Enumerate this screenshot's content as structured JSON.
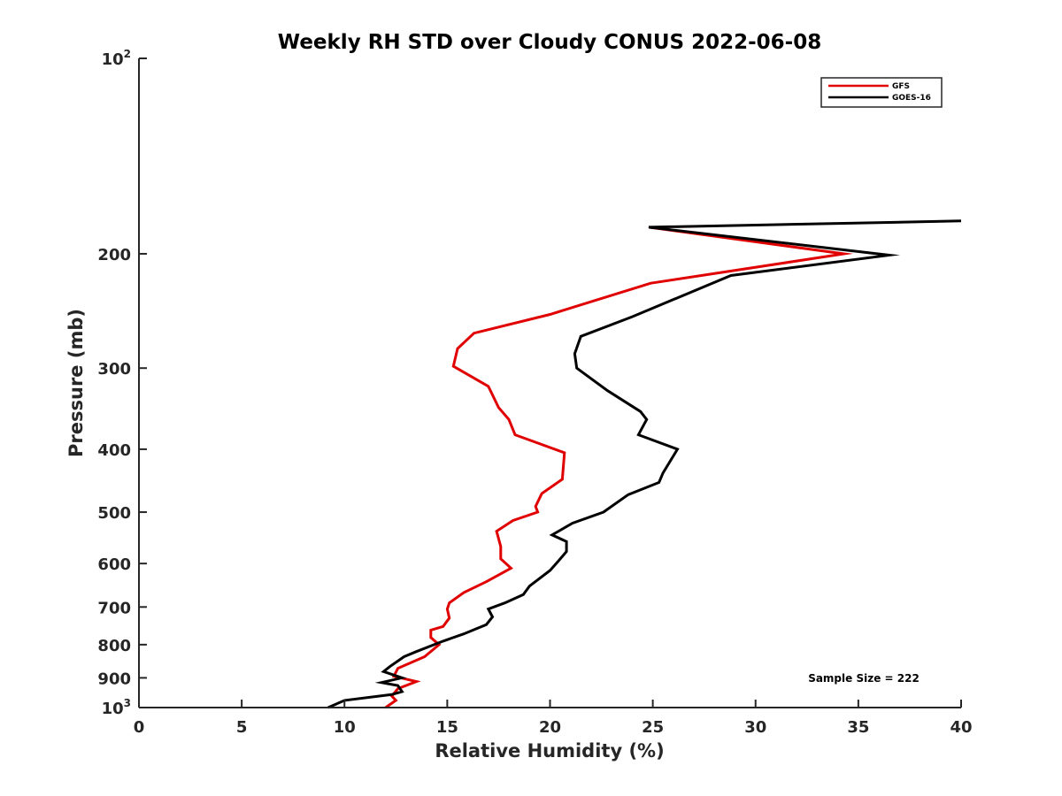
{
  "chart_data": {
    "type": "line",
    "title": "Weekly RH STD over Cloudy CONUS 2022-06-08",
    "xlabel": "Relative Humidity (%)",
    "ylabel": "Pressure (mb)",
    "xlim": [
      0,
      40
    ],
    "ylim": [
      1000,
      100
    ],
    "y_scale": "log",
    "y_reversed": true,
    "grid": false,
    "legend_position": "top-right",
    "x_ticks": [
      "0",
      "5",
      "10",
      "15",
      "20",
      "25",
      "30",
      "35",
      "40"
    ],
    "y_ticks": [
      {
        "value": 100,
        "base": "10",
        "exp": "2"
      },
      {
        "value": 200,
        "label": "200"
      },
      {
        "value": 300,
        "label": "300"
      },
      {
        "value": 400,
        "label": "400"
      },
      {
        "value": 500,
        "label": "500"
      },
      {
        "value": 600,
        "label": "600"
      },
      {
        "value": 700,
        "label": "700"
      },
      {
        "value": 800,
        "label": "800"
      },
      {
        "value": 900,
        "label": "900"
      },
      {
        "value": 1000,
        "base": "10",
        "exp": "3"
      }
    ],
    "annotation": "Sample Size = 222",
    "series": [
      {
        "name": "GFS",
        "color": "#e00000",
        "points": [
          [
            24.8,
            182
          ],
          [
            34.3,
            200
          ],
          [
            24.9,
            222
          ],
          [
            20.0,
            248
          ],
          [
            16.3,
            265
          ],
          [
            15.5,
            280
          ],
          [
            15.3,
            298
          ],
          [
            17.0,
            320
          ],
          [
            17.5,
            345
          ],
          [
            18.0,
            360
          ],
          [
            18.3,
            380
          ],
          [
            20.7,
            405
          ],
          [
            20.6,
            445
          ],
          [
            19.6,
            468
          ],
          [
            19.3,
            490
          ],
          [
            19.4,
            500
          ],
          [
            18.2,
            515
          ],
          [
            17.4,
            535
          ],
          [
            17.6,
            565
          ],
          [
            17.6,
            590
          ],
          [
            18.1,
            610
          ],
          [
            16.9,
            640
          ],
          [
            15.8,
            665
          ],
          [
            15.1,
            690
          ],
          [
            15.0,
            705
          ],
          [
            15.1,
            728
          ],
          [
            14.8,
            750
          ],
          [
            14.2,
            760
          ],
          [
            14.2,
            780
          ],
          [
            14.6,
            800
          ],
          [
            13.9,
            835
          ],
          [
            12.6,
            870
          ],
          [
            12.4,
            895
          ],
          [
            13.5,
            912
          ],
          [
            12.6,
            935
          ],
          [
            12.3,
            960
          ],
          [
            12.5,
            975
          ],
          [
            12.0,
            1000
          ]
        ]
      },
      {
        "name": "GOES-16",
        "color": "#000000",
        "points": [
          [
            40.0,
            178
          ],
          [
            24.8,
            182
          ],
          [
            36.5,
            201
          ],
          [
            28.8,
            216
          ],
          [
            24.0,
            250
          ],
          [
            21.5,
            268
          ],
          [
            21.2,
            285
          ],
          [
            21.3,
            300
          ],
          [
            22.8,
            325
          ],
          [
            24.4,
            350
          ],
          [
            24.7,
            360
          ],
          [
            24.3,
            380
          ],
          [
            26.2,
            400
          ],
          [
            25.5,
            435
          ],
          [
            25.3,
            450
          ],
          [
            23.8,
            470
          ],
          [
            22.6,
            500
          ],
          [
            21.1,
            520
          ],
          [
            20.1,
            542
          ],
          [
            20.8,
            555
          ],
          [
            20.8,
            575
          ],
          [
            20.4,
            595
          ],
          [
            20.0,
            615
          ],
          [
            19.0,
            650
          ],
          [
            18.7,
            670
          ],
          [
            17.8,
            690
          ],
          [
            17.0,
            705
          ],
          [
            17.2,
            725
          ],
          [
            16.9,
            745
          ],
          [
            15.8,
            770
          ],
          [
            14.8,
            790
          ],
          [
            13.5,
            820
          ],
          [
            12.9,
            835
          ],
          [
            12.2,
            865
          ],
          [
            11.9,
            880
          ],
          [
            12.8,
            900
          ],
          [
            11.8,
            915
          ],
          [
            12.6,
            925
          ],
          [
            12.8,
            945
          ],
          [
            12.3,
            955
          ],
          [
            10.0,
            975
          ],
          [
            9.2,
            1000
          ]
        ]
      }
    ]
  }
}
